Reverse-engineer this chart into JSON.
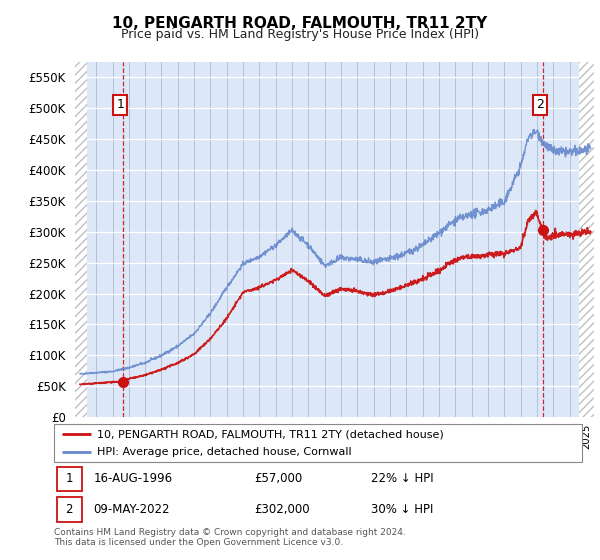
{
  "title": "10, PENGARTH ROAD, FALMOUTH, TR11 2TY",
  "subtitle": "Price paid vs. HM Land Registry's House Price Index (HPI)",
  "legend_line1": "10, PENGARTH ROAD, FALMOUTH, TR11 2TY (detached house)",
  "legend_line2": "HPI: Average price, detached house, Cornwall",
  "annotation1_date": "16-AUG-1996",
  "annotation1_price": "£57,000",
  "annotation1_hpi": "22% ↓ HPI",
  "annotation2_date": "09-MAY-2022",
  "annotation2_price": "£302,000",
  "annotation2_hpi": "30% ↓ HPI",
  "footer": "Contains HM Land Registry data © Crown copyright and database right 2024.\nThis data is licensed under the Open Government Licence v3.0.",
  "ylim": [
    0,
    575000
  ],
  "yticks": [
    0,
    50000,
    100000,
    150000,
    200000,
    250000,
    300000,
    350000,
    400000,
    450000,
    500000,
    550000
  ],
  "hatch_color": "#c0c0c0",
  "grid_color_v": "#b0b8d0",
  "grid_color_h": "#c8d4e8",
  "bg_color": "#dce8f8",
  "line_color_red": "#cc1111",
  "line_color_blue": "#6688cc",
  "annotation_color": "#cc1111",
  "sale1_x": 1996.62,
  "sale1_y": 57000,
  "sale2_x": 2022.35,
  "sale2_y": 302000,
  "xmin": 1993.7,
  "xmax": 2025.5,
  "hatch_left_end": 1994.42,
  "hatch_right_start": 2024.58
}
